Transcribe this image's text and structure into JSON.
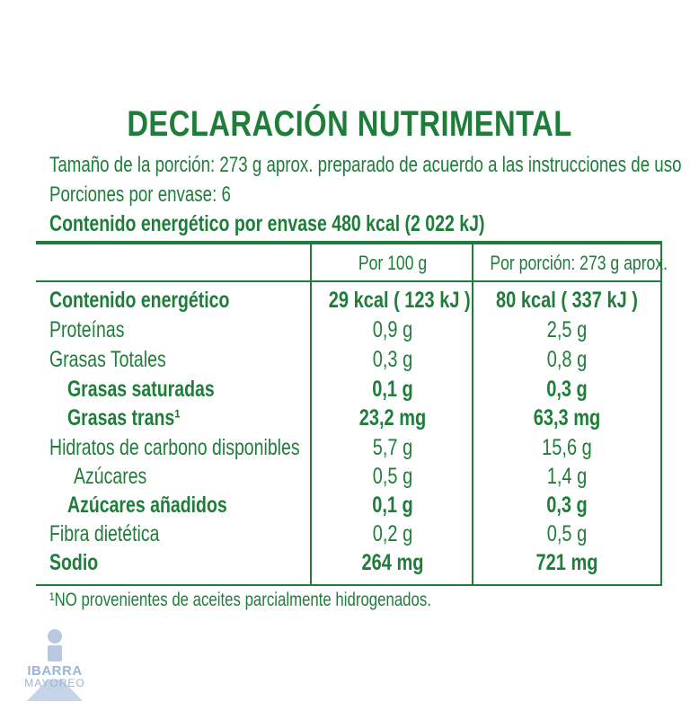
{
  "title": "DECLARACIÓN NUTRIMENTAL",
  "serving_size": "Tamaño de la porción: 273 g aprox. preparado de acuerdo a las instrucciones de uso",
  "portions": "Porciones por envase: 6",
  "energy_per_pack": "Contenido energético por envase 480 kcal (2 022 kJ)",
  "columns": {
    "per100": "Por 100 g",
    "per_portion": "Por porción: 273 g aprox."
  },
  "rows": [
    {
      "label": "Contenido energético",
      "per100": "29 kcal ( 123 kJ )",
      "per_portion": "80 kcal ( 337 kJ )"
    },
    {
      "label": "Proteínas",
      "per100": "0,9 g",
      "per_portion": "2,5 g"
    },
    {
      "label": "Grasas Totales",
      "per100": "0,3 g",
      "per_portion": "0,8 g"
    },
    {
      "label": "Grasas saturadas",
      "per100": "0,1 g",
      "per_portion": "0,3 g"
    },
    {
      "label": "Grasas trans¹",
      "per100": "23,2 mg",
      "per_portion": "63,3 mg"
    },
    {
      "label": "Hidratos de carbono disponibles",
      "per100": "5,7 g",
      "per_portion": "15,6 g"
    },
    {
      "label": "Azúcares",
      "per100": "0,5 g",
      "per_portion": "1,4 g"
    },
    {
      "label": "Azúcares añadidos",
      "per100": "0,1 g",
      "per_portion": "0,3 g"
    },
    {
      "label": "Fibra dietética",
      "per100": "0,2 g",
      "per_portion": "0,5 g"
    },
    {
      "label": "Sodio",
      "per100": "264 mg",
      "per_portion": "721 mg"
    }
  ],
  "footnote": "¹NO provenientes de aceites parcialmente hidrogenados.",
  "watermark": {
    "brand": "IBARRA",
    "sub": "MAYOREO",
    "color": "#9db4d4"
  },
  "colors": {
    "text": "#1f7d3a"
  }
}
